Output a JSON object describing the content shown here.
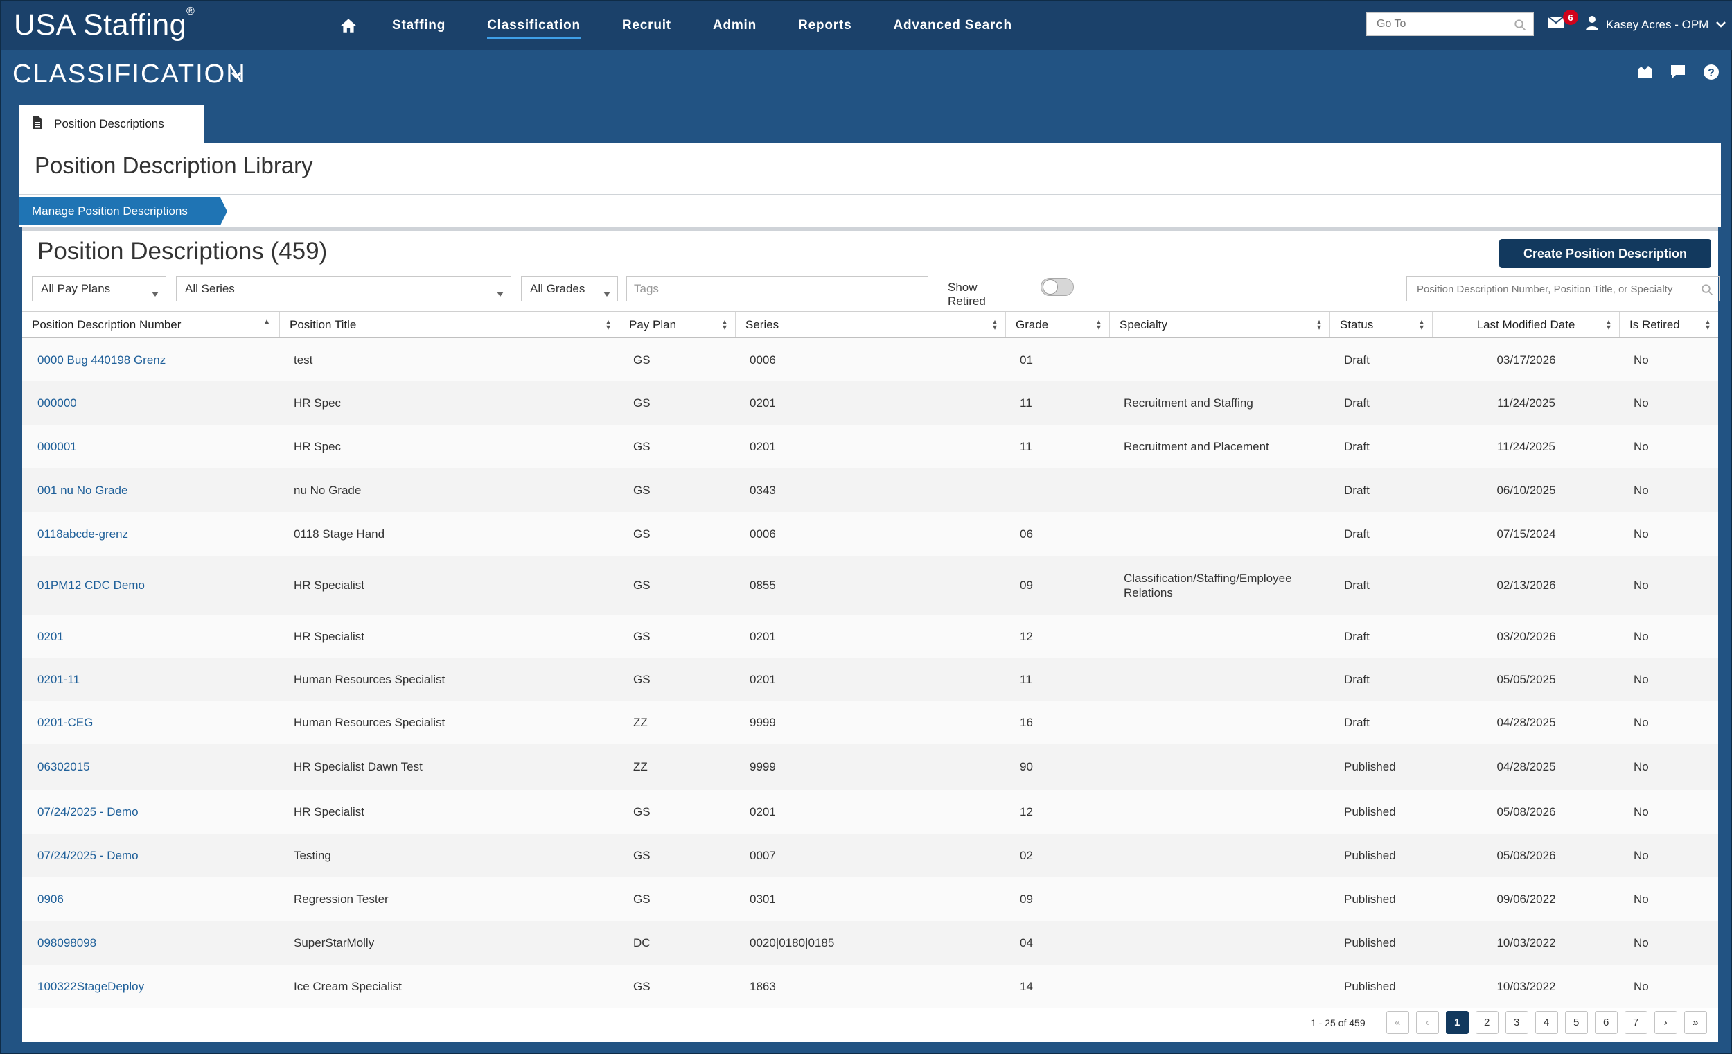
{
  "app": {
    "brand": "USA Staffing",
    "brand_mark": "®"
  },
  "nav": {
    "items": [
      {
        "label": "Staffing",
        "active": false
      },
      {
        "label": "Classification",
        "active": true
      },
      {
        "label": "Recruit",
        "active": false
      },
      {
        "label": "Admin",
        "active": false
      },
      {
        "label": "Reports",
        "active": false
      },
      {
        "label": "Advanced Search",
        "active": false
      }
    ],
    "goto_placeholder": "Go To",
    "mail_count": "6",
    "user": "Kasey Acres - OPM"
  },
  "section": {
    "title": "CLASSIFICATION"
  },
  "tab": {
    "label": "Position Descriptions"
  },
  "page": {
    "title": "Position Description Library"
  },
  "breadcrumb": {
    "label": "Manage Position Descriptions"
  },
  "list": {
    "title": "Position Descriptions (459)",
    "create_label": "Create Position Description",
    "filters": {
      "pay_plan": "All Pay Plans",
      "series": "All Series",
      "grades": "All Grades",
      "tags_placeholder": "Tags",
      "show_retired_label": "Show Retired",
      "show_retired": false,
      "search_placeholder": "Position Description Number, Position Title, or Specialty"
    },
    "columns": [
      "Position Description Number",
      "Position Title",
      "Pay Plan",
      "Series",
      "Grade",
      "Specialty",
      "Status",
      "Last Modified Date",
      "Is Retired"
    ],
    "rows": [
      [
        "0000 Bug 440198 Grenz",
        "test",
        "GS",
        "0006",
        "01",
        "",
        "Draft",
        "03/17/2026",
        "No"
      ],
      [
        "000000",
        "HR Spec",
        "GS",
        "0201",
        "11",
        "Recruitment and Staffing",
        "Draft",
        "11/24/2025",
        "No"
      ],
      [
        "000001",
        "HR Spec",
        "GS",
        "0201",
        "11",
        "Recruitment and Placement",
        "Draft",
        "11/24/2025",
        "No"
      ],
      [
        "001 nu No Grade",
        "nu No Grade",
        "GS",
        "0343",
        "",
        "",
        "Draft",
        "06/10/2025",
        "No"
      ],
      [
        "0118abcde-grenz",
        "0118 Stage Hand",
        "GS",
        "0006",
        "06",
        "",
        "Draft",
        "07/15/2024",
        "No"
      ],
      [
        "01PM12 CDC Demo",
        "HR Specialist",
        "GS",
        "0855",
        "09",
        "Classification/Staffing/Employee Relations",
        "Draft",
        "02/13/2026",
        "No"
      ],
      [
        "0201",
        "HR Specialist",
        "GS",
        "0201",
        "12",
        "",
        "Draft",
        "03/20/2026",
        "No"
      ],
      [
        "0201-11",
        "Human Resources Specialist",
        "GS",
        "0201",
        "11",
        "",
        "Draft",
        "05/05/2025",
        "No"
      ],
      [
        "0201-CEG",
        "Human Resources Specialist",
        "ZZ",
        "9999",
        "16",
        "",
        "Draft",
        "04/28/2025",
        "No"
      ],
      [
        "06302015",
        "HR Specialist Dawn Test",
        "ZZ",
        "9999",
        "90",
        "",
        "Published",
        "04/28/2025",
        "No"
      ],
      [
        "07/24/2025 - Demo",
        "HR Specialist",
        "GS",
        "0201",
        "12",
        "",
        "Published",
        "05/08/2026",
        "No"
      ],
      [
        "07/24/2025 - Demo",
        "Testing",
        "GS",
        "0007",
        "02",
        "",
        "Published",
        "05/08/2026",
        "No"
      ],
      [
        "0906",
        "Regression Tester",
        "GS",
        "0301",
        "09",
        "",
        "Published",
        "09/06/2022",
        "No"
      ],
      [
        "098098098",
        "SuperStarMolly",
        "DC",
        "0020|0180|0185",
        "04",
        "",
        "Published",
        "10/03/2022",
        "No"
      ],
      [
        "100322StageDeploy",
        "Ice Cream Specialist",
        "GS",
        "1863",
        "14",
        "",
        "Published",
        "10/03/2022",
        "No"
      ]
    ],
    "pagination": {
      "info": "1 - 25 of 459",
      "pages": [
        "1",
        "2",
        "3",
        "4",
        "5",
        "6",
        "7"
      ],
      "current": "1"
    }
  }
}
